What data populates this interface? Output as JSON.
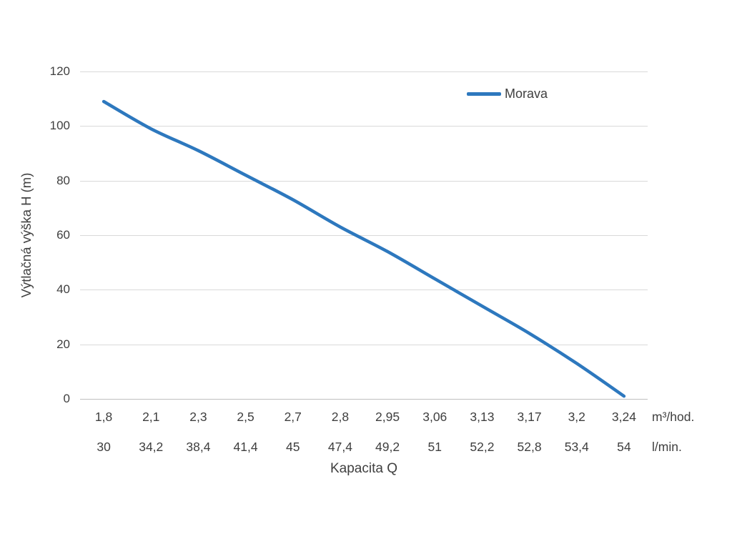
{
  "chart_data": {
    "type": "line",
    "title": "",
    "xlabel": "Kapacita Q",
    "ylabel": "Výtlačná výška H (m)",
    "ylim": [
      0,
      120
    ],
    "ytick_step": 20,
    "yticks": [
      0,
      20,
      40,
      60,
      80,
      100,
      120
    ],
    "grid": "horizontal",
    "legend_position": "top-right-inside",
    "categories_primary": [
      "1,8",
      "2,1",
      "2,3",
      "2,5",
      "2,7",
      "2,8",
      "2,95",
      "3,06",
      "3,13",
      "3,17",
      "3,2",
      "3,24"
    ],
    "categories_secondary": [
      "30",
      "34,2",
      "38,4",
      "41,4",
      "45",
      "47,4",
      "49,2",
      "51",
      "52,2",
      "52,8",
      "53,4",
      "54"
    ],
    "unit_primary": "m³/hod.",
    "unit_secondary": "l/min.",
    "series": [
      {
        "name": "Morava",
        "color": "#2d78be",
        "values": [
          109,
          99,
          91,
          82,
          73,
          63,
          54,
          44,
          34,
          24,
          13,
          1
        ]
      }
    ],
    "colors": {
      "grid": "#d9d9d9",
      "axis": "#bfbfbf",
      "text": "#3f3f3f",
      "background": "#ffffff"
    }
  }
}
